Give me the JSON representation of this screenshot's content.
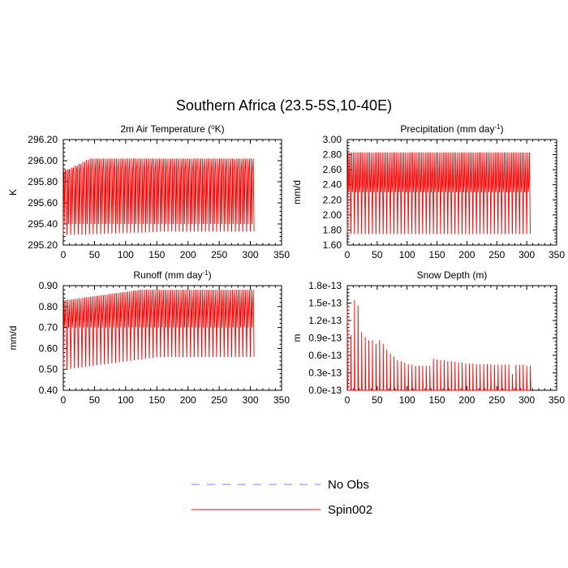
{
  "figure": {
    "title": "Southern Africa (23.5-5S,10-40E)",
    "legend": [
      {
        "name": "No Obs",
        "color": "#7f7fff",
        "style": "dashed"
      },
      {
        "name": "Spin002",
        "color": "#ff0000",
        "style": "solid"
      }
    ]
  },
  "chart_data": [
    {
      "type": "line",
      "title": "2m Air Temperature (",
      "title_sup": "o",
      "title_end": "K)",
      "ylabel": "K",
      "xlim": [
        0,
        350
      ],
      "ylim": [
        295.2,
        296.2
      ],
      "xticks": [
        "0",
        "50",
        "100",
        "150",
        "200",
        "250",
        "300",
        "350"
      ],
      "yticks": [
        "295.20",
        "295.40",
        "295.60",
        "295.80",
        "296.00",
        "296.20"
      ],
      "series": [
        {
          "color": "#ff0000",
          "x_start": 0,
          "x_end": 307,
          "period": 6,
          "cycles": 51,
          "peak_start": 295.9,
          "peak_end": 296.02,
          "peak_rise": 40,
          "trough_start": 295.3,
          "trough_end": 295.33,
          "trough_rise": 150,
          "secondary_peak": 295.91,
          "secondary_trough": 295.4
        }
      ]
    },
    {
      "type": "line",
      "title": "Precipitation (mm day",
      "title_sup": "-1",
      "title_end": ")",
      "ylabel": "mm/d",
      "xlim": [
        0,
        350
      ],
      "ylim": [
        1.6,
        3.0
      ],
      "xticks": [
        "0",
        "50",
        "100",
        "150",
        "200",
        "250",
        "300",
        "350"
      ],
      "yticks": [
        "1.60",
        "1.80",
        "2.00",
        "2.20",
        "2.40",
        "2.60",
        "2.80",
        "3.00"
      ],
      "series": [
        {
          "color": "#ff0000",
          "x_start": 0,
          "x_end": 307,
          "period": 6,
          "cycles": 51,
          "peak_start": 2.83,
          "peak_end": 2.83,
          "peak_rise": 1,
          "trough_start": 1.75,
          "trough_end": 1.75,
          "trough_rise": 1,
          "secondary_peak": 2.38,
          "secondary_trough": 2.3
        }
      ]
    },
    {
      "type": "line",
      "title": "Runoff (mm day",
      "title_sup": "-1",
      "title_end": ")",
      "ylabel": "mm/d",
      "xlim": [
        0,
        350
      ],
      "ylim": [
        0.4,
        0.9
      ],
      "xticks": [
        "0",
        "50",
        "100",
        "150",
        "200",
        "250",
        "300",
        "350"
      ],
      "yticks": [
        "0.40",
        "0.50",
        "0.60",
        "0.70",
        "0.80",
        "0.90"
      ],
      "series": [
        {
          "color": "#ff0000",
          "x_start": 0,
          "x_end": 307,
          "period": 6,
          "cycles": 51,
          "peak_start": 0.83,
          "peak_end": 0.88,
          "peak_rise": 120,
          "trough_start": 0.5,
          "trough_end": 0.56,
          "trough_rise": 150,
          "secondary_peak_start": 0.74,
          "secondary_peak_end": 0.79,
          "secondary_trough": 0.7
        }
      ]
    },
    {
      "type": "line",
      "title": "Snow Depth (m)",
      "title_sup": "",
      "title_end": "",
      "ylabel": "m",
      "xlim": [
        0,
        350
      ],
      "ylim": [
        0,
        1.8e-13
      ],
      "xticks": [
        "0",
        "50",
        "100",
        "150",
        "200",
        "250",
        "300",
        "350"
      ],
      "yticks": [
        "0.0e-13",
        "0.3e-13",
        "0.6e-13",
        "0.9e-13",
        "1.2e-13",
        "1.5e-13",
        "1.8e-13"
      ],
      "series": [
        {
          "color": "#ff0000",
          "spikes_x": [
            0,
            6,
            12,
            18,
            24,
            30,
            36,
            42,
            48,
            54,
            60,
            66,
            72,
            78,
            84,
            90,
            96,
            102,
            108,
            114,
            120,
            126,
            132,
            138,
            144,
            150,
            156,
            162,
            168,
            174,
            180,
            186,
            192,
            198,
            204,
            210,
            216,
            222,
            228,
            234,
            240,
            246,
            252,
            258,
            264,
            270,
            276,
            282,
            288,
            294,
            300,
            306
          ],
          "spikes_y": [
            1.46e-13,
            9.5e-14,
            1.55e-13,
            1.46e-13,
            1e-13,
            9.2e-14,
            8.6e-14,
            8.6e-14,
            8e-14,
            8.6e-14,
            8e-14,
            7e-14,
            6.3e-14,
            5.8e-14,
            5.2e-14,
            5e-14,
            4.8e-14,
            4.5e-14,
            4.4e-14,
            4.2e-14,
            4.2e-14,
            4.2e-14,
            4.2e-14,
            4.2e-14,
            5.4e-14,
            5.3e-14,
            5.2e-14,
            5.2e-14,
            5e-14,
            5e-14,
            4.9e-14,
            4.8e-14,
            4.8e-14,
            4.6e-14,
            4.6e-14,
            4.6e-14,
            4.5e-14,
            4.5e-14,
            4.5e-14,
            4.5e-14,
            4.5e-14,
            4.4e-14,
            4.4e-14,
            4.4e-14,
            4.4e-14,
            4.4e-14,
            2.8e-14,
            4.4e-14,
            4.4e-14,
            4.4e-14,
            4.2e-14,
            4.2e-14
          ]
        }
      ]
    }
  ]
}
